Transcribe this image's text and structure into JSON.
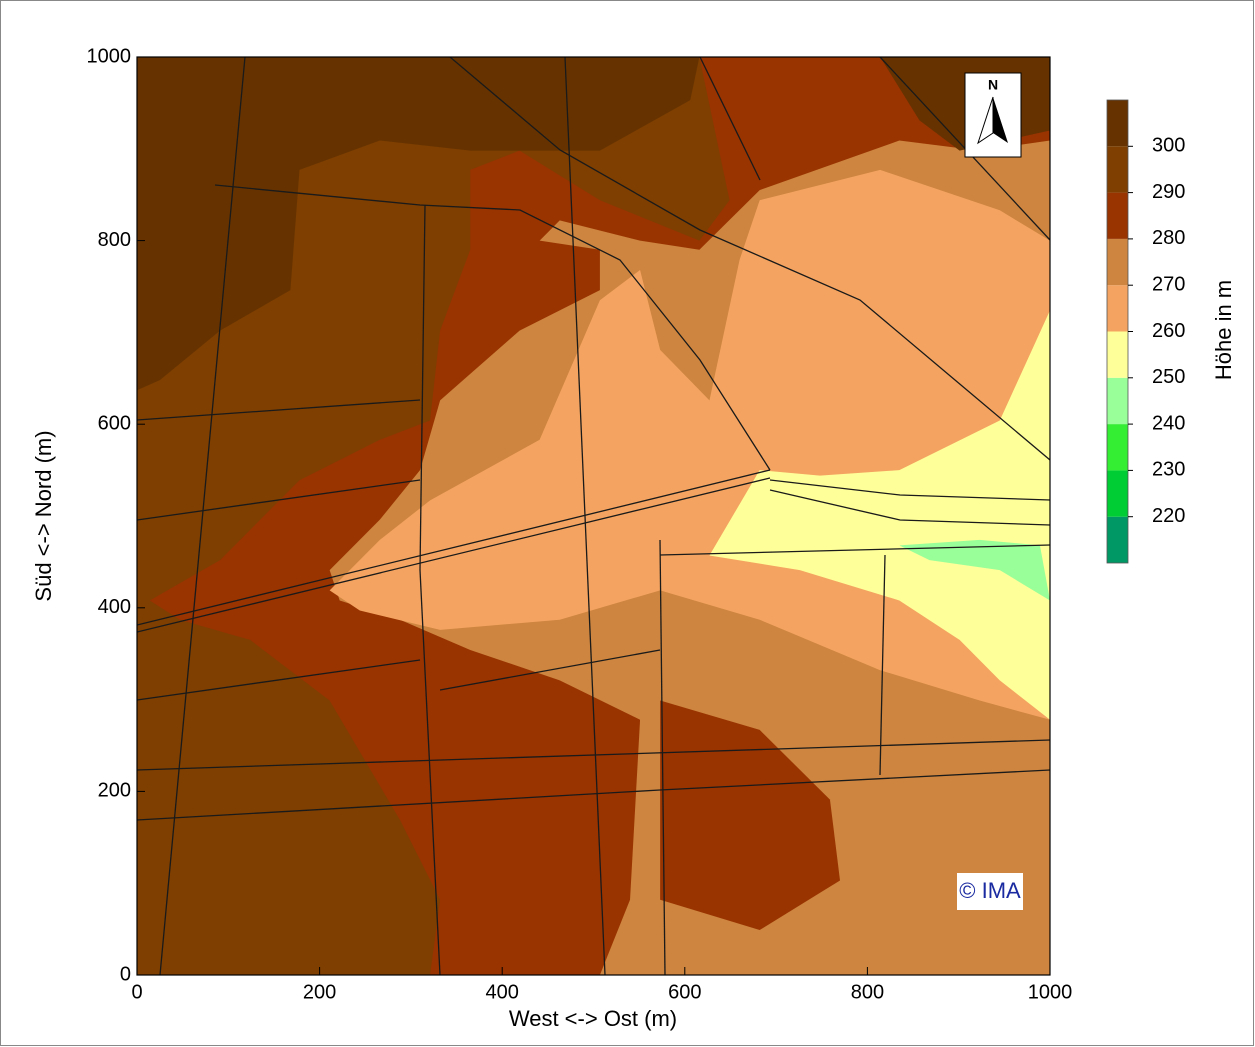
{
  "chart_data": {
    "type": "contour",
    "xlabel": "West <-> Ost (m)",
    "ylabel": "Süd <-> Nord (m)",
    "xlim": [
      0,
      1000
    ],
    "ylim": [
      0,
      1000
    ],
    "xticks": [
      0,
      200,
      400,
      600,
      800,
      1000
    ],
    "yticks": [
      0,
      200,
      400,
      600,
      800,
      1000
    ],
    "colorbar": {
      "label": "Höhe in m",
      "levels": [
        210,
        220,
        230,
        240,
        250,
        260,
        270,
        280,
        290,
        300,
        310
      ],
      "colors": [
        "#009966",
        "#00cc33",
        "#33ee33",
        "#99ff99",
        "#ffff99",
        "#f4a460",
        "#cd853f",
        "#993300",
        "#7f3f00",
        "#663300"
      ],
      "ticks": [
        220,
        230,
        240,
        250,
        260,
        270,
        280,
        290,
        300
      ]
    },
    "background_level": 290,
    "regions": [
      {
        "level": 280,
        "x": [
          321,
          332,
          288,
          211,
          124,
          47,
          14,
          91,
          178,
          266,
          321,
          332,
          365,
          365,
          419,
          507,
          616,
          649,
          616,
          1000,
          1000
        ],
        "y": [
          0,
          82,
          169,
          299,
          365,
          387,
          408,
          452,
          539,
          583,
          604,
          702,
          790,
          877,
          898,
          844,
          800,
          844,
          1000,
          1000,
          0
        ]
      },
      {
        "level": 270,
        "x": [
          507,
          540,
          551,
          463,
          365,
          288,
          222,
          211,
          266,
          310,
          332,
          419,
          507,
          507,
          441,
          463,
          551,
          616,
          682,
          835,
          923,
          1000,
          1000
        ],
        "y": [
          0,
          82,
          278,
          321,
          354,
          387,
          408,
          441,
          496,
          550,
          626,
          702,
          746,
          790,
          800,
          822,
          800,
          790,
          855,
          909,
          898,
          909,
          0
        ]
      },
      {
        "level": 280,
        "x": [
          573,
          682,
          759,
          770,
          682,
          573
        ],
        "y": [
          299,
          267,
          191,
          103,
          49,
          82
        ]
      },
      {
        "level": 260,
        "x": [
          211,
          266,
          321,
          441,
          507,
          551,
          573,
          627,
          660,
          682,
          814,
          945,
          1000,
          1000,
          923,
          814,
          682,
          573,
          463,
          332,
          244
        ],
        "y": [
          419,
          474,
          517,
          583,
          735,
          768,
          681,
          626,
          779,
          844,
          877,
          833,
          800,
          278,
          299,
          332,
          387,
          419,
          387,
          376,
          397
        ]
      },
      {
        "level": 250,
        "x": [
          627,
          682,
          748,
          835,
          945,
          1000,
          1000,
          945,
          901,
          835,
          726
        ],
        "y": [
          457,
          550,
          544,
          550,
          604,
          724,
          278,
          321,
          365,
          408,
          441
        ]
      },
      {
        "level": 240,
        "x": [
          835,
          923,
          989,
          1000,
          945,
          868
        ],
        "y": [
          468,
          474,
          468,
          408,
          441,
          452
        ]
      },
      {
        "level": 300,
        "x": [
          0,
          616,
          606,
          507,
          365,
          266,
          178,
          168,
          91,
          25,
          0
        ],
        "y": [
          1000,
          1000,
          953,
          898,
          898,
          909,
          877,
          746,
          702,
          648,
          637
        ]
      },
      {
        "level": 300,
        "x": [
          814,
          1000,
          1000,
          901,
          857
        ],
        "y": [
          1000,
          1000,
          920,
          898,
          931
        ]
      }
    ],
    "annotations": {
      "north": "N",
      "copyright": "© IMA"
    }
  }
}
